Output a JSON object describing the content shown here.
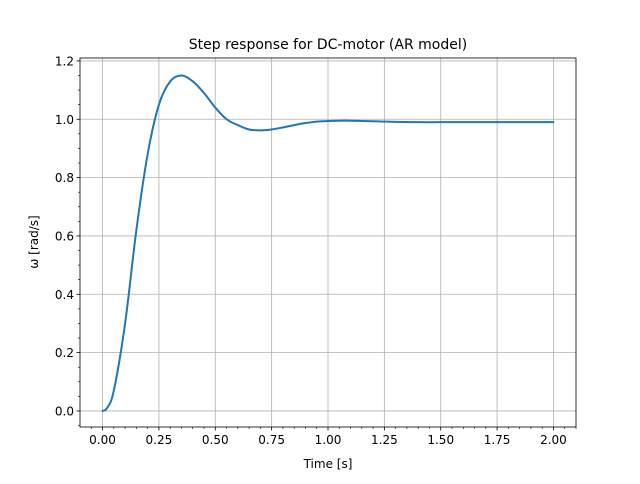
{
  "colors": {
    "line": "#1f77b4",
    "grid": "#b0b0b0",
    "axes": "#000000",
    "background": "#ffffff"
  },
  "chart_data": {
    "type": "line",
    "title": "Step response for DC-motor (AR model)",
    "xlabel": "Time [s]",
    "ylabel": "ω [rad/s]",
    "xlim": [
      -0.1,
      2.1
    ],
    "ylim": [
      -0.055,
      1.21
    ],
    "grid": true,
    "minor_ticks": true,
    "xticks": [
      0,
      0.25,
      0.5,
      0.75,
      1.0,
      1.25,
      1.5,
      1.75,
      2.0
    ],
    "xtick_labels": [
      "0.00",
      "0.25",
      "0.50",
      "0.75",
      "1.00",
      "1.25",
      "1.50",
      "1.75",
      "2.00"
    ],
    "yticks": [
      0,
      0.2,
      0.4,
      0.6,
      0.8,
      1.0,
      1.2
    ],
    "ytick_labels": [
      "0.0",
      "0.2",
      "0.4",
      "0.6",
      "0.8",
      "1.0",
      "1.2"
    ],
    "series": [
      {
        "x": [
          0,
          0.02,
          0.05,
          0.1,
          0.15,
          0.2,
          0.25,
          0.3,
          0.35,
          0.4,
          0.45,
          0.5,
          0.55,
          0.6,
          0.65,
          0.7,
          0.75,
          0.8,
          0.85,
          0.9,
          0.95,
          1.0,
          1.05,
          1.1,
          1.15,
          1.2,
          1.25,
          1.3,
          1.4,
          1.5,
          1.6,
          1.7,
          1.8,
          1.9,
          2.0
        ],
        "y": [
          0.0,
          0.01,
          0.07,
          0.3,
          0.62,
          0.88,
          1.05,
          1.13,
          1.15,
          1.13,
          1.09,
          1.04,
          1.0,
          0.98,
          0.965,
          0.962,
          0.965,
          0.972,
          0.98,
          0.987,
          0.992,
          0.994,
          0.995,
          0.995,
          0.994,
          0.993,
          0.992,
          0.991,
          0.99,
          0.99,
          0.99,
          0.99,
          0.99,
          0.99,
          0.99
        ]
      }
    ]
  }
}
